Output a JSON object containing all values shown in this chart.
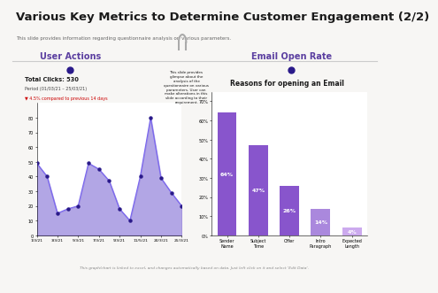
{
  "title": "Various Key Metrics to Determine Customer Engagement (2/2)",
  "subtitle": "This slide provides information regarding questionnaire analysis on various parameters.",
  "bg_color": "#f7f6f4",
  "header_line_color": "#e8a020",
  "left_panel_title": "User Actions",
  "right_panel_title": "Email Open Rate",
  "left_panel_title_color": "#5b3fa0",
  "right_panel_title_color": "#5b3fa0",
  "total_clicks_text": "Total Clicks: 530",
  "period_text": "Period (01/03/21 – 25/03/21)",
  "change_text": "▼ 4.5% compared to previous 14 days",
  "change_color": "#cc0000",
  "line_y": [
    49,
    40,
    15,
    18,
    20,
    49,
    45,
    37,
    18,
    10,
    40,
    80,
    39,
    29,
    20
  ],
  "line_x_labels": [
    "1/3/21",
    "3/3/21",
    "5/3/21",
    "7/3/21",
    "9/3/21",
    "11/5/21",
    "20/3/21",
    "25/3/21"
  ],
  "line_color": "#7b68ee",
  "fill_color": "#9988dd",
  "marker_color": "#2a1a8a",
  "bar_categories": [
    "Sender\nName",
    "Subject\nTime",
    "Offer",
    "Intro\nParagraph",
    "Expected\nLength"
  ],
  "bar_values": [
    64,
    47,
    26,
    14,
    4
  ],
  "bar_colors": [
    "#8855cc",
    "#8855cc",
    "#8855cc",
    "#aa88dd",
    "#ccaaee"
  ],
  "bar_label_color": "#ffffff",
  "bar_chart_title": "Reasons for opening an Email",
  "bar_chart_title_color": "#1a1a1a",
  "panel_bg": "#ffffff",
  "panel_border": "#dddddd",
  "dark_accent": "#2a1060",
  "note_text": "This graph/chart is linked to excel, and changes automatically based on data. Just left click on it and select 'Edit Data'.",
  "sticky_bg": "#f0c030",
  "sticky_text": "This slide provides\nglimpse about the\nanalysis of the\nquestionnaire on various\nparameters. User can\nmake alterations in this\nslide according to their\nrequirement.",
  "dot_color": "#2a1a8a",
  "separator_color": "#cccccc"
}
